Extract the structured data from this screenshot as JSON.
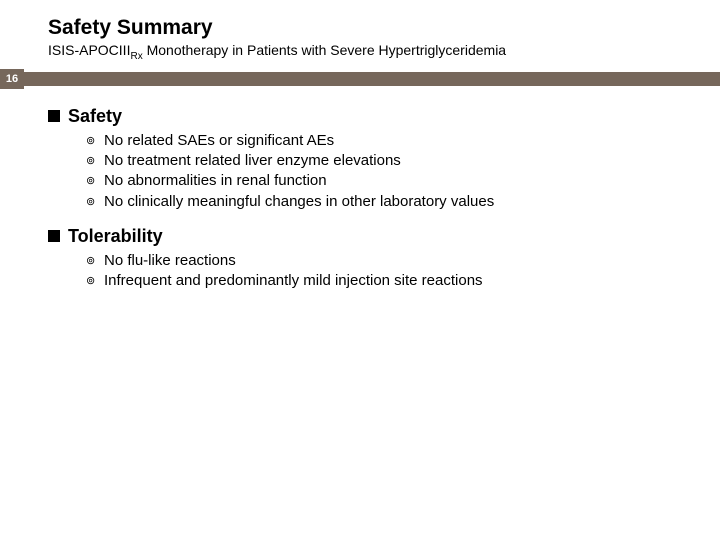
{
  "header": {
    "title": "Safety Summary",
    "subtitle_prefix": "ISIS-APOCIII",
    "subtitle_subscript": "Rx",
    "subtitle_suffix": " Monotherapy in Patients with Severe Hypertriglyceridemia",
    "page_number": "16"
  },
  "sections": [
    {
      "heading": "Safety",
      "items": [
        "No related SAEs or significant AEs",
        "No treatment related liver enzyme elevations",
        "No abnormalities in renal function",
        "No clinically meaningful changes in other laboratory values"
      ]
    },
    {
      "heading": "Tolerability",
      "items": [
        "No flu-like reactions",
        "Infrequent and predominantly mild injection site reactions"
      ]
    }
  ],
  "colors": {
    "bar_color": "#76675b",
    "text_color": "#000000",
    "background": "#ffffff"
  }
}
